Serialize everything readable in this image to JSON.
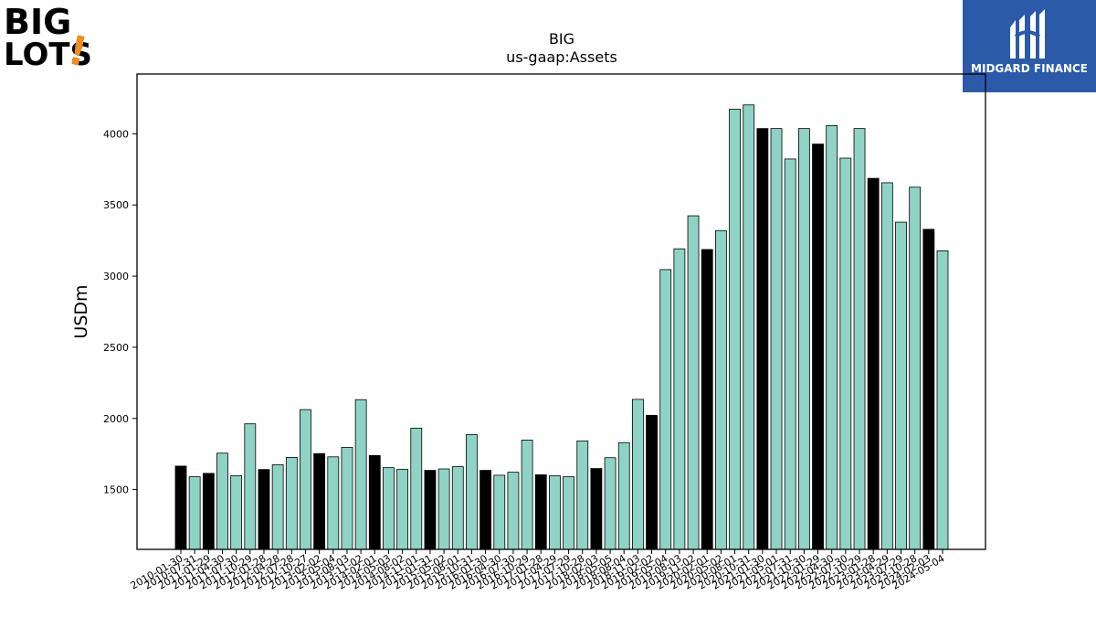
{
  "brand": {
    "left_logo": {
      "line1": "BIG",
      "line2": "LOTS",
      "mark": "!",
      "icon": "big-lots-logo"
    },
    "right_logo": {
      "text": "MIDGARD FINANCE",
      "icon": "midgard-finance-logo",
      "bg_color": "#2b5aa9"
    }
  },
  "colors": {
    "highlight": "#000000",
    "normal": "#8fd3c5",
    "edge": "#000000"
  },
  "chart_data": {
    "type": "bar",
    "title": "BIG",
    "subtitle": "us-gaap:Assets",
    "xlabel": "",
    "ylabel": "USDm",
    "ylim": [
      1080,
      4420
    ],
    "yticks": [
      1500,
      2000,
      2500,
      3000,
      3500,
      4000
    ],
    "grid": false,
    "legend": "none",
    "categories": [
      "2010-01-30",
      "2010-07-31",
      "2011-01-29",
      "2011-04-30",
      "2011-07-30",
      "2011-10-29",
      "2012-01-28",
      "2012-04-28",
      "2012-07-28",
      "2012-10-27",
      "2013-02-02",
      "2013-05-04",
      "2013-08-03",
      "2013-11-02",
      "2014-02-01",
      "2014-05-03",
      "2014-08-02",
      "2014-11-01",
      "2015-01-31",
      "2015-05-02",
      "2015-08-01",
      "2015-10-31",
      "2016-01-30",
      "2016-04-30",
      "2016-07-30",
      "2016-10-29",
      "2017-01-28",
      "2017-04-29",
      "2017-07-29",
      "2017-10-28",
      "2018-02-03",
      "2018-05-05",
      "2018-08-04",
      "2018-11-03",
      "2019-02-02",
      "2019-05-04",
      "2019-08-03",
      "2019-11-02",
      "2020-02-01",
      "2020-05-02",
      "2020-08-01",
      "2020-10-31",
      "2021-01-30",
      "2021-05-01",
      "2021-07-31",
      "2021-10-30",
      "2022-01-29",
      "2022-04-30",
      "2022-07-30",
      "2022-10-29",
      "2023-01-28",
      "2023-04-29",
      "2023-07-29",
      "2023-10-28",
      "2024-02-03",
      "2024-05-04"
    ],
    "values": [
      1665,
      1590,
      1614,
      1756,
      1597,
      1962,
      1641,
      1675,
      1726,
      2062,
      1753,
      1730,
      1797,
      2132,
      1739,
      1654,
      1643,
      1932,
      1635,
      1645,
      1661,
      1886,
      1635,
      1601,
      1622,
      1848,
      1604,
      1597,
      1590,
      1842,
      1648,
      1724,
      1830,
      2134,
      2022,
      3046,
      3192,
      3424,
      3187,
      3320,
      4173,
      4203,
      4037,
      4037,
      3823,
      4037,
      3928,
      4058,
      3829,
      4037,
      3687,
      3656,
      3379,
      3625,
      3329,
      3178
    ],
    "highlighted": [
      true,
      false,
      true,
      false,
      false,
      false,
      true,
      false,
      false,
      false,
      true,
      false,
      false,
      false,
      true,
      false,
      false,
      false,
      true,
      false,
      false,
      false,
      true,
      false,
      false,
      false,
      true,
      false,
      false,
      false,
      true,
      false,
      false,
      false,
      true,
      false,
      false,
      false,
      true,
      false,
      false,
      false,
      true,
      false,
      false,
      false,
      true,
      false,
      false,
      false,
      true,
      false,
      false,
      false,
      true,
      false
    ]
  }
}
